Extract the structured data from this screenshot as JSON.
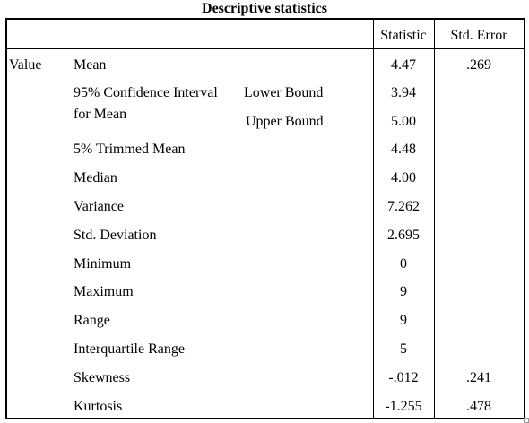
{
  "title": "Descriptive statistics",
  "columns": {
    "statistic": "Statistic",
    "std_error": "Std. Error"
  },
  "group_label": "Value",
  "ci_label_line1": "95% Confidence Interval",
  "ci_label_line2": "for Mean",
  "rows": [
    {
      "label": "Mean",
      "statistic": "4.47",
      "std_error": ".269"
    },
    {
      "label": "Lower Bound",
      "statistic": "3.94",
      "std_error": ""
    },
    {
      "label": "Upper Bound",
      "statistic": "5.00",
      "std_error": ""
    },
    {
      "label": "5% Trimmed Mean",
      "statistic": "4.48",
      "std_error": ""
    },
    {
      "label": "Median",
      "statistic": "4.00",
      "std_error": ""
    },
    {
      "label": "Variance",
      "statistic": "7.262",
      "std_error": ""
    },
    {
      "label": "Std. Deviation",
      "statistic": "2.695",
      "std_error": ""
    },
    {
      "label": "Minimum",
      "statistic": "0",
      "std_error": ""
    },
    {
      "label": "Maximum",
      "statistic": "9",
      "std_error": ""
    },
    {
      "label": "Range",
      "statistic": "9",
      "std_error": ""
    },
    {
      "label": "Interquartile Range",
      "statistic": "5",
      "std_error": ""
    },
    {
      "label": "Skewness",
      "statistic": "-.012",
      "std_error": ".241"
    },
    {
      "label": "Kurtosis",
      "statistic": "-1.255",
      "std_error": ".478"
    }
  ]
}
